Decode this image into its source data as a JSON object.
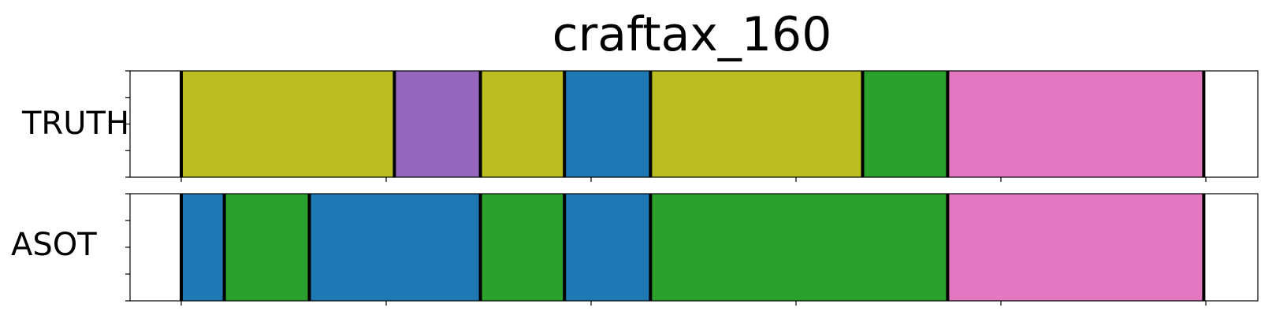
{
  "chart_data": {
    "type": "segmentation",
    "title": "craftax_160",
    "x_range": [
      0,
      100
    ],
    "x_ticks": [
      5,
      25,
      45,
      65,
      85,
      105
    ],
    "colors": {
      "olive": "#bcbd22",
      "purple": "#9467bd",
      "blue": "#1f77b4",
      "green": "#2ca02c",
      "pink": "#e377c2"
    },
    "rows": [
      {
        "label": "TRUTH",
        "segments": [
          {
            "start": 5.0,
            "end": 25.8,
            "color": "olive"
          },
          {
            "start": 25.8,
            "end": 34.2,
            "color": "purple"
          },
          {
            "start": 34.2,
            "end": 42.4,
            "color": "olive"
          },
          {
            "start": 42.4,
            "end": 50.8,
            "color": "blue"
          },
          {
            "start": 50.8,
            "end": 71.5,
            "color": "olive"
          },
          {
            "start": 71.5,
            "end": 79.8,
            "color": "green"
          },
          {
            "start": 79.8,
            "end": 104.8,
            "color": "pink"
          }
        ]
      },
      {
        "label": "ASOT",
        "segments": [
          {
            "start": 5.0,
            "end": 9.2,
            "color": "blue"
          },
          {
            "start": 9.2,
            "end": 17.5,
            "color": "green"
          },
          {
            "start": 17.5,
            "end": 34.2,
            "color": "blue"
          },
          {
            "start": 34.2,
            "end": 42.4,
            "color": "green"
          },
          {
            "start": 42.4,
            "end": 50.8,
            "color": "blue"
          },
          {
            "start": 50.8,
            "end": 79.8,
            "color": "green"
          },
          {
            "start": 79.8,
            "end": 104.8,
            "color": "pink"
          }
        ]
      }
    ]
  }
}
